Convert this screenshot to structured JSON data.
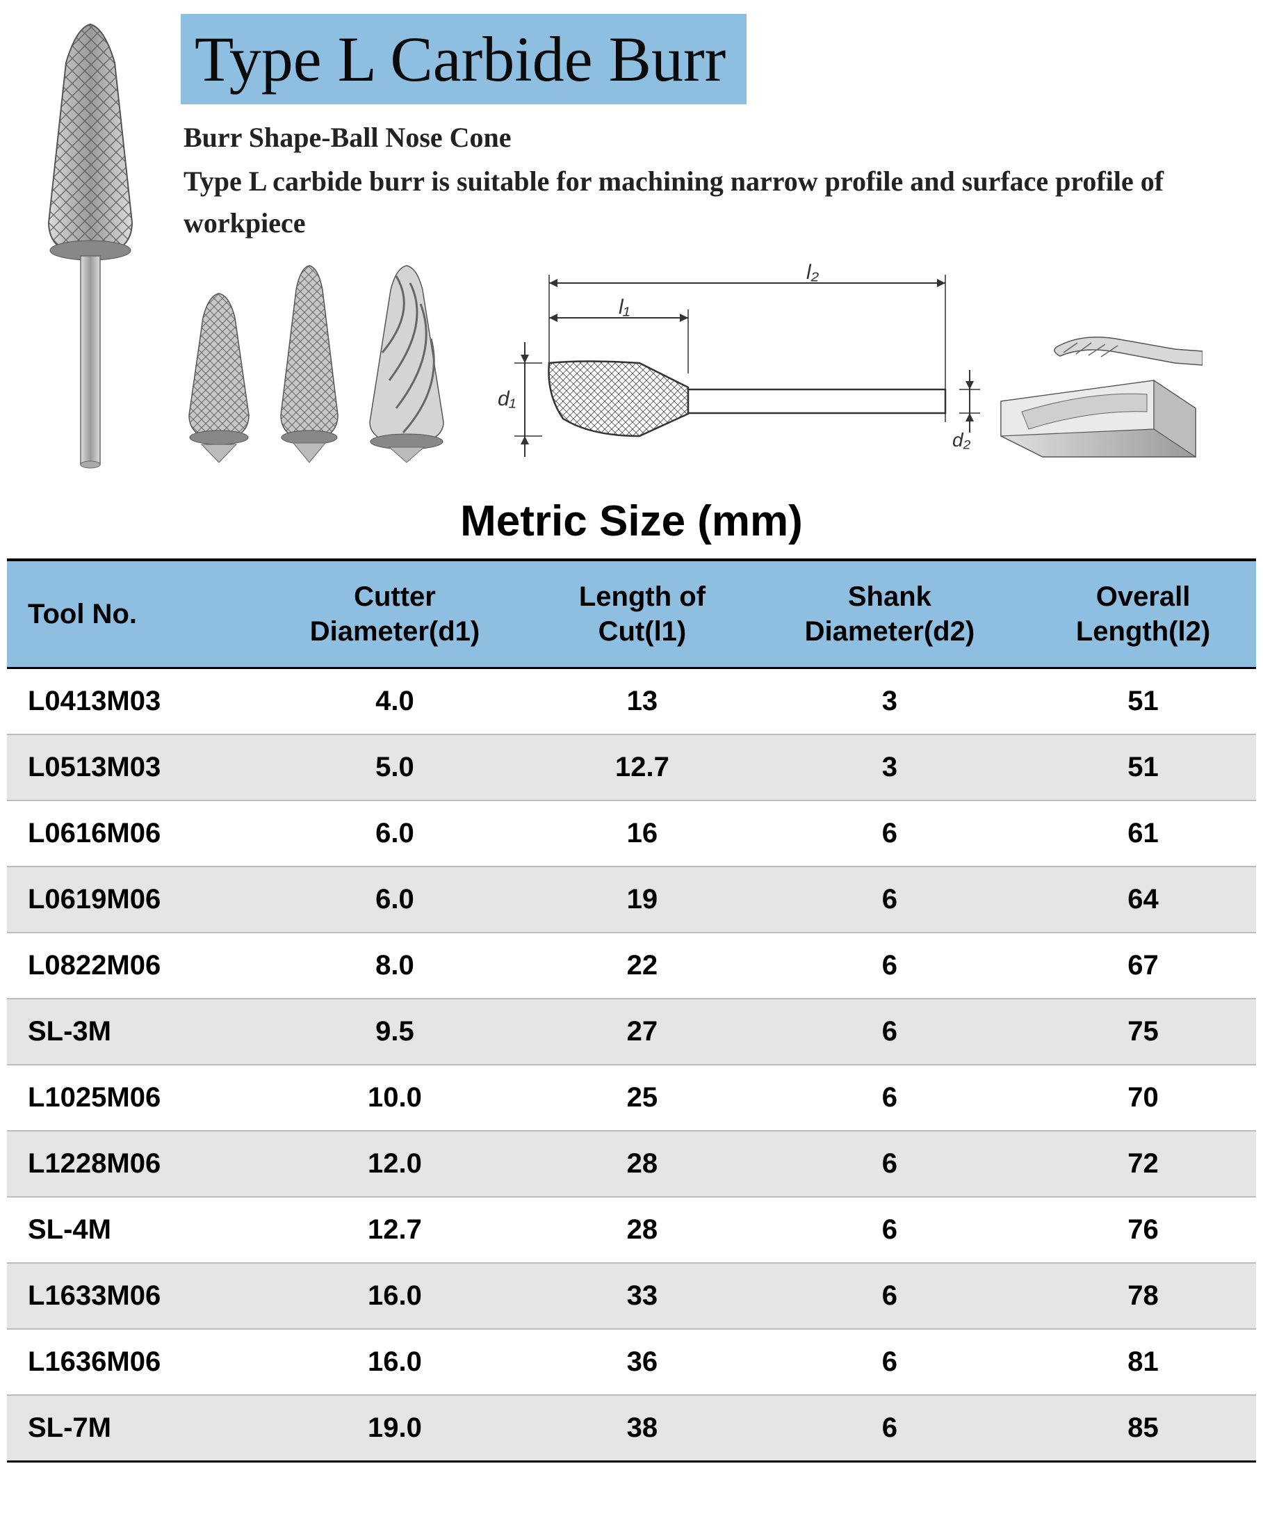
{
  "header": {
    "title": "Type L Carbide Burr",
    "title_bg": "#8fbfe0",
    "title_color": "#0a0a0a",
    "title_fontsize": 92,
    "subtitle": "Burr Shape-Ball Nose Cone",
    "description": "Type L carbide burr is suitable for machining narrow profile and surface profile  of workpiece",
    "desc_fontsize": 40,
    "desc_color": "#222222"
  },
  "diagram_labels": {
    "d1": "d₁",
    "d2": "d₂",
    "l1": "l₁",
    "l2": "l₂"
  },
  "section_title": "Metric Size (mm)",
  "table": {
    "header_bg": "#8fbfe0",
    "row_alt_bg": "#e5e5e5",
    "border_color": "#000000",
    "columns": [
      "Tool No.",
      "Cutter Diameter(d1)",
      "Length of Cut(l1)",
      "Shank Diameter(d2)",
      "Overall Length(l2)"
    ],
    "column_break": [
      "",
      "Cutter",
      "Length of",
      "Shank",
      "Overall"
    ],
    "column_break2": [
      "Tool No.",
      "Diameter(d1)",
      "Cut(l1)",
      "Diameter(d2)",
      "Length(l2)"
    ],
    "rows": [
      {
        "tool": "L0413M03",
        "d1": "4.0",
        "l1": "13",
        "d2": "3",
        "l2": "51",
        "centered": false
      },
      {
        "tool": "L0513M03",
        "d1": "5.0",
        "l1": "12.7",
        "d2": "3",
        "l2": "51",
        "centered": false
      },
      {
        "tool": "L0616M06",
        "d1": "6.0",
        "l1": "16",
        "d2": "6",
        "l2": "61",
        "centered": false
      },
      {
        "tool": "L0619M06",
        "d1": "6.0",
        "l1": "19",
        "d2": "6",
        "l2": "64",
        "centered": false
      },
      {
        "tool": "L0822M06",
        "d1": "8.0",
        "l1": "22",
        "d2": "6",
        "l2": "67",
        "centered": false
      },
      {
        "tool": "SL-3M",
        "d1": "9.5",
        "l1": "27",
        "d2": "6",
        "l2": "75",
        "centered": true
      },
      {
        "tool": "L1025M06",
        "d1": "10.0",
        "l1": "25",
        "d2": "6",
        "l2": "70",
        "centered": false
      },
      {
        "tool": "L1228M06",
        "d1": "12.0",
        "l1": "28",
        "d2": "6",
        "l2": "72",
        "centered": false
      },
      {
        "tool": "SL-4M",
        "d1": "12.7",
        "l1": "28",
        "d2": "6",
        "l2": "76",
        "centered": true
      },
      {
        "tool": "L1633M06",
        "d1": "16.0",
        "l1": "33",
        "d2": "6",
        "l2": "78",
        "centered": false
      },
      {
        "tool": "L1636M06",
        "d1": "16.0",
        "l1": "36",
        "d2": "6",
        "l2": "81",
        "centered": false
      },
      {
        "tool": "SL-7M",
        "d1": "19.0",
        "l1": "38",
        "d2": "6",
        "l2": "85",
        "centered": true
      }
    ]
  },
  "colors": {
    "page_bg": "#ffffff",
    "banner_bg": "#8fbfe0",
    "text": "#000000",
    "alt_row": "#e5e5e5",
    "rule": "#bcbcbc",
    "burr_fill": "#b8b8b8",
    "burr_stroke": "#5a5a5a",
    "diagram_stroke": "#333333"
  }
}
